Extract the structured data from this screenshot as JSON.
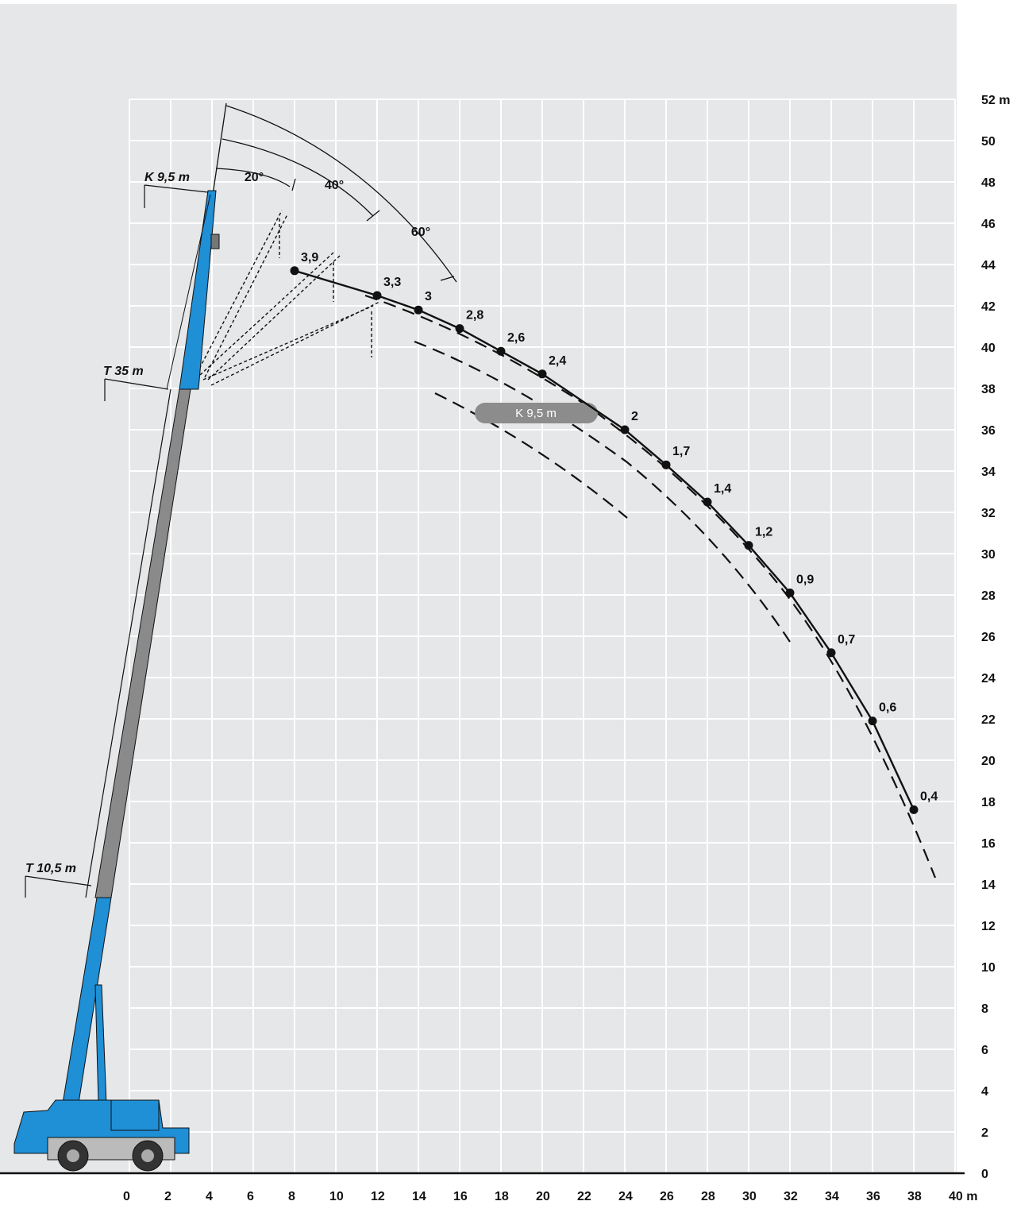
{
  "chart_data": {
    "type": "line",
    "xlim": [
      0,
      40
    ],
    "ylim": [
      0,
      52
    ],
    "xticks": [
      0,
      2,
      4,
      6,
      8,
      10,
      12,
      14,
      16,
      18,
      20,
      22,
      24,
      26,
      28,
      30,
      32,
      34,
      36,
      38,
      {
        "value": 40,
        "label": "40 m"
      }
    ],
    "yticks": [
      0,
      2,
      4,
      6,
      8,
      10,
      12,
      14,
      16,
      18,
      20,
      22,
      24,
      26,
      28,
      30,
      32,
      34,
      36,
      38,
      40,
      42,
      44,
      46,
      48,
      50,
      {
        "value": 52,
        "label": "52 m"
      }
    ],
    "grid": true,
    "series": [
      {
        "color": "#111111",
        "x": [
          8,
          12,
          14,
          16,
          18,
          20,
          24,
          26,
          28,
          30,
          32,
          34,
          36,
          38
        ],
        "values": [
          43.7,
          42.5,
          41.8,
          40.9,
          39.8,
          38.7,
          36.0,
          34.3,
          32.5,
          30.4,
          28.1,
          25.2,
          21.9,
          17.6
        ],
        "point_labels": [
          "3,9",
          "3,3",
          "3",
          "2,8",
          "2,6",
          "2,4",
          "2",
          "1,7",
          "1,4",
          "1,2",
          "0,9",
          "0,7",
          "0,6",
          "0,4"
        ]
      }
    ],
    "annotations": [
      "K 9,5 m",
      "T 35 m",
      "T 10,5 m",
      "20°",
      "40°",
      "60°",
      "K 9,5 m"
    ]
  }
}
